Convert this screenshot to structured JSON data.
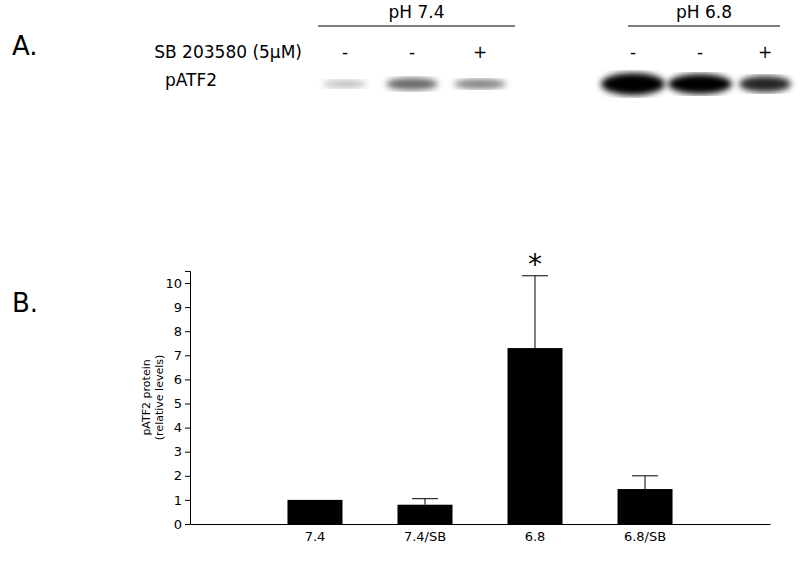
{
  "panel_a": {
    "label": "A.",
    "groups": [
      {
        "label": "pH 7.4"
      },
      {
        "label": "pH 6.8"
      }
    ],
    "treatment_label": "SB 203580 (5μM)",
    "treatment": [
      "-",
      "-",
      "+",
      "-",
      "-",
      "+"
    ],
    "row_label": "pATF2"
  },
  "panel_b": {
    "label": "B."
  },
  "chart_data": {
    "type": "bar",
    "categories": [
      "7.4",
      "7.4/SB",
      "6.8",
      "6.8/SB"
    ],
    "values": [
      1,
      0.8,
      7.3,
      1.45
    ],
    "errors": [
      0,
      0.25,
      3.0,
      0.55
    ],
    "color": "#000000",
    "y_label": [
      "pATF2 protein",
      "(relative levels)"
    ],
    "ylim": [
      0,
      10.5
    ],
    "yticks": [
      0,
      1,
      2,
      3,
      4,
      5,
      6,
      7,
      8,
      9,
      10
    ],
    "grid": false,
    "annotations": [
      {
        "text": "*",
        "category": "6.8"
      }
    ]
  }
}
